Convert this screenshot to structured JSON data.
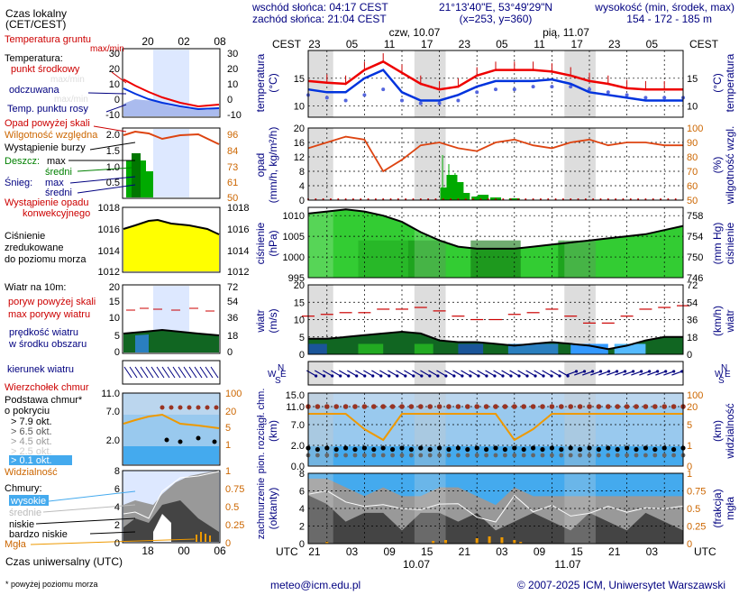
{
  "header": {
    "sunrise": "wschód słońca: 04:17 CEST",
    "sunset": "zachód słońca: 21:04 CEST",
    "coords": "21°13'40\"E, 53°49'29\"N",
    "grid_point": "(x=253, y=360)",
    "elevation_label": "wysokość (min, środek, max)",
    "elevation_values": "154 - 172 - 185 m",
    "day1": "czw, 10.07",
    "day2": "pią, 11.07",
    "tz_left": "CEST",
    "tz_right": "CEST",
    "top_hours": [
      "23",
      "05",
      "11",
      "17",
      "23",
      "05",
      "11",
      "17",
      "23",
      "05"
    ],
    "bottom_hours": [
      "21",
      "03",
      "09",
      "15",
      "21",
      "03",
      "09",
      "15",
      "21",
      "03"
    ],
    "utc_left": "UTC",
    "utc_right": "UTC",
    "date1": "10.07",
    "date2": "11.07"
  },
  "legend": {
    "local_time": "Czas lokalny",
    "local_time_zone": "(CET/CEST)",
    "preview_hours_top": [
      "20",
      "02",
      "08"
    ],
    "preview_hours_bottom": [
      "18",
      "00",
      "06"
    ],
    "utc_time": "Czas uniwersalny (UTC)",
    "footnote": "* powyżej poziomu morza",
    "temp": {
      "ground": "Temperatura gruntu",
      "ground_sub": "max/min",
      "temp": "Temperatura:",
      "mid": "punkt środkowy",
      "maxmin": "max/min",
      "felt": "odczuwana",
      "felt_sub": "max/min",
      "dew": "Temp. punktu rosy",
      "ticks_left": [
        "30",
        "20",
        "10",
        "0",
        "-10"
      ],
      "ticks_right": [
        "30",
        "20",
        "10",
        "0",
        "-10"
      ]
    },
    "precip": {
      "over_scale": "Opad powyżej skali",
      "humidity": "Wilgotność względna",
      "storm": "Wystąpienie burzy",
      "rain": "Deszcz:",
      "rain_max": "max",
      "rain_mean": "średni",
      "snow": "Śnieg:",
      "snow_max": "max",
      "snow_mean": "średni",
      "convective": "Wystąpienie opadu",
      "convective2": "konwekcyjnego",
      "ticks_left": [
        "2.0",
        "1.5",
        "1.0",
        "0.5"
      ],
      "ticks_right": [
        "96",
        "84",
        "73",
        "61",
        "50"
      ]
    },
    "pressure": {
      "line1": "Ciśnienie",
      "line2": "zredukowane",
      "line3": "do poziomu morza",
      "ticks": [
        "1018",
        "1016",
        "1014",
        "1012"
      ]
    },
    "wind": {
      "title": "Wiatr na 10m:",
      "gust_over": "poryw powyżej skali",
      "gust_max": "max porywy wiatru",
      "speed": "prędkość wiatru",
      "speed2": "w środku obszaru",
      "ticks_left": [
        "20",
        "15",
        "10",
        "5",
        "0"
      ],
      "ticks_right": [
        "72",
        "54",
        "36",
        "18",
        "0"
      ]
    },
    "direction": {
      "title": "kierunek wiatru",
      "chill": "Wierzchołek chmur"
    },
    "cloudbase": {
      "title": "Podstawa chmur*",
      "title2": "o pokryciu",
      "o79": "> 7.9 okt.",
      "o65": "> 6.5 okt.",
      "o45": "> 4.5 okt.",
      "o25": "> 2.5 okt.",
      "o01": "> 0.1 okt.",
      "visibility": "Widzialność",
      "ticks_left": [
        "11.0",
        "7.0",
        "2.0"
      ],
      "ticks_right": [
        "100",
        "20",
        "5",
        "1"
      ]
    },
    "clouds": {
      "title": "Chmury:",
      "high": "wysokie",
      "mid": "średnie",
      "low": "niskie",
      "very_low": "bardzo niskie",
      "fog": "Mgła",
      "ticks_left": [
        "8",
        "6",
        "4",
        "2",
        "0"
      ],
      "ticks_right": [
        "1",
        "0.75",
        "0.5",
        "0.25",
        "0"
      ]
    }
  },
  "panels": {
    "temp": {
      "ylabel_left": "temperatura",
      "unit_left": "(°C)",
      "ylabel_right": "temperatura",
      "unit_right": "(°C)",
      "ticks": [
        "15",
        "10"
      ],
      "tick_values": [
        15,
        10
      ]
    },
    "precip": {
      "ylabel_left": "opad",
      "unit_left": "(mm/h, kg/m²/h)",
      "ylabel_right": "wilgotność wzgl.",
      "unit_right": "(%)",
      "ticks_left": [
        "20",
        "16",
        "12",
        "8",
        "4",
        "0"
      ],
      "ticks_right": [
        "100",
        "90",
        "80",
        "70",
        "60",
        "50"
      ]
    },
    "pressure": {
      "ylabel_left": "ciśnienie",
      "unit_left": "(hPa)",
      "ylabel_right": "ciśnienie",
      "unit_right": "(mm Hg)",
      "ticks_left": [
        "1010",
        "1005",
        "1000",
        "995"
      ],
      "ticks_right": [
        "758",
        "754",
        "750",
        "746"
      ]
    },
    "wind": {
      "ylabel_left": "wiatr",
      "unit_left": "(m/s)",
      "ylabel_right": "wiatr",
      "unit_right": "(km/h)",
      "ticks_left": [
        "20",
        "15",
        "10",
        "5",
        "0"
      ],
      "ticks_right": [
        "72",
        "54",
        "36",
        "18",
        "0"
      ]
    },
    "direction": {
      "compass_left": [
        "N",
        "W",
        "E",
        "S"
      ],
      "compass_right": [
        "N",
        "W",
        "E",
        "S"
      ]
    },
    "cloudbase": {
      "ylabel_left": "pion. rozciągł. chm.",
      "unit_left": "(km)",
      "ylabel_right": "widzialność",
      "unit_right": "(km)",
      "ticks_left": [
        "15.0",
        "11.0",
        "7.0",
        "2.0",
        "0.0"
      ],
      "ticks_right": [
        "100",
        "20",
        "5",
        "1",
        "0"
      ]
    },
    "clouds": {
      "ylabel_left": "zachmurzenie",
      "unit_left": "(oktanty)",
      "ylabel_right": "mgła",
      "unit_right": "(frakcja)",
      "ticks_left": [
        "8",
        "6",
        "4",
        "2",
        "0"
      ],
      "ticks_right": [
        "1",
        "0.75",
        "0.5",
        "0.25",
        "0"
      ]
    }
  },
  "footer": {
    "email": "meteo@icm.edu.pl",
    "copyright": "© 2007-2025 ICM, Uniwersytet Warszawski"
  },
  "colors": {
    "temp_mid": "#ee0000",
    "felt": "#0033dd",
    "dew": "#5566dd",
    "humidity": "#dd4411",
    "rain": "#00aa00",
    "pressure_fill": "#33cc33",
    "wind_fill": "#116622",
    "night": "#dddddd",
    "vis": "#ee9900"
  },
  "chart_data": {
    "type": "line",
    "x_hours": [
      0,
      3,
      6,
      9,
      12,
      15,
      18,
      21,
      24,
      27,
      30,
      33,
      36,
      39,
      42,
      45,
      48,
      51,
      54,
      57,
      60
    ],
    "temperature_mid": [
      14.5,
      14.2,
      14.0,
      16.5,
      18.0,
      16.0,
      14.0,
      13.0,
      13.5,
      15.5,
      16.5,
      16.5,
      16.5,
      16.2,
      15.5,
      14.5,
      14.0,
      13.2,
      13.0,
      13.0,
      13.0
    ],
    "temperature_felt": [
      13.0,
      12.5,
      12.5,
      15.0,
      16.5,
      12.5,
      11.0,
      11.0,
      12.0,
      13.5,
      14.5,
      14.5,
      14.5,
      14.8,
      14.0,
      12.5,
      12.0,
      11.5,
      11.0,
      11.0,
      11.0
    ],
    "dew_point": [
      12.0,
      11.5,
      11.0,
      12.0,
      13.0,
      11.0,
      10.5,
      10.5,
      11.0,
      12.5,
      13.0,
      13.0,
      13.5,
      13.5,
      13.5,
      13.0,
      12.5,
      12.0,
      11.5,
      11.5,
      11.5
    ],
    "humidity": [
      86,
      90,
      94,
      92,
      70,
      78,
      88,
      90,
      86,
      84,
      90,
      92,
      88,
      86,
      90,
      92,
      88,
      90,
      90,
      88,
      88
    ],
    "pressure": [
      1010.5,
      1011.0,
      1011.5,
      1011.0,
      1010.0,
      1008.5,
      1006.0,
      1004.0,
      1002.5,
      1002.0,
      1002.0,
      1002.0,
      1002.5,
      1003.0,
      1003.5,
      1004.0,
      1004.5,
      1005.0,
      1005.5,
      1006.5,
      1007.5
    ],
    "wind_speed": [
      4.5,
      4.5,
      5.0,
      5.5,
      6.0,
      6.5,
      6.0,
      4.0,
      3.5,
      3.5,
      3.0,
      2.5,
      3.0,
      3.5,
      3.0,
      2.5,
      1.5,
      2.5,
      4.0,
      5.0,
      5.0
    ],
    "wind_gust": [
      11,
      11.5,
      12,
      12,
      13,
      13,
      13.5,
      12.5,
      11,
      10,
      10,
      11.5,
      12,
      13,
      11,
      9,
      9,
      11,
      13,
      13.5,
      14
    ],
    "visibility_km": [
      20,
      20,
      20,
      5,
      4,
      20,
      20,
      20,
      20,
      20,
      20,
      4,
      5,
      20,
      20,
      20,
      20,
      20,
      20,
      20,
      20
    ],
    "cloud_total": [
      8,
      8,
      7,
      6,
      7,
      6,
      6,
      7,
      7,
      6,
      5,
      7,
      6,
      6,
      6,
      6,
      6,
      6,
      6,
      6,
      6
    ],
    "ylim_temperature": [
      8,
      20
    ],
    "ylim_precip": [
      0,
      20
    ],
    "ylim_humidity": [
      50,
      100
    ],
    "ylim_pressure": [
      995,
      1012
    ],
    "ylim_wind": [
      0,
      20
    ],
    "ylim_cloud_okta": [
      0,
      8
    ],
    "xlabel": "UTC"
  }
}
